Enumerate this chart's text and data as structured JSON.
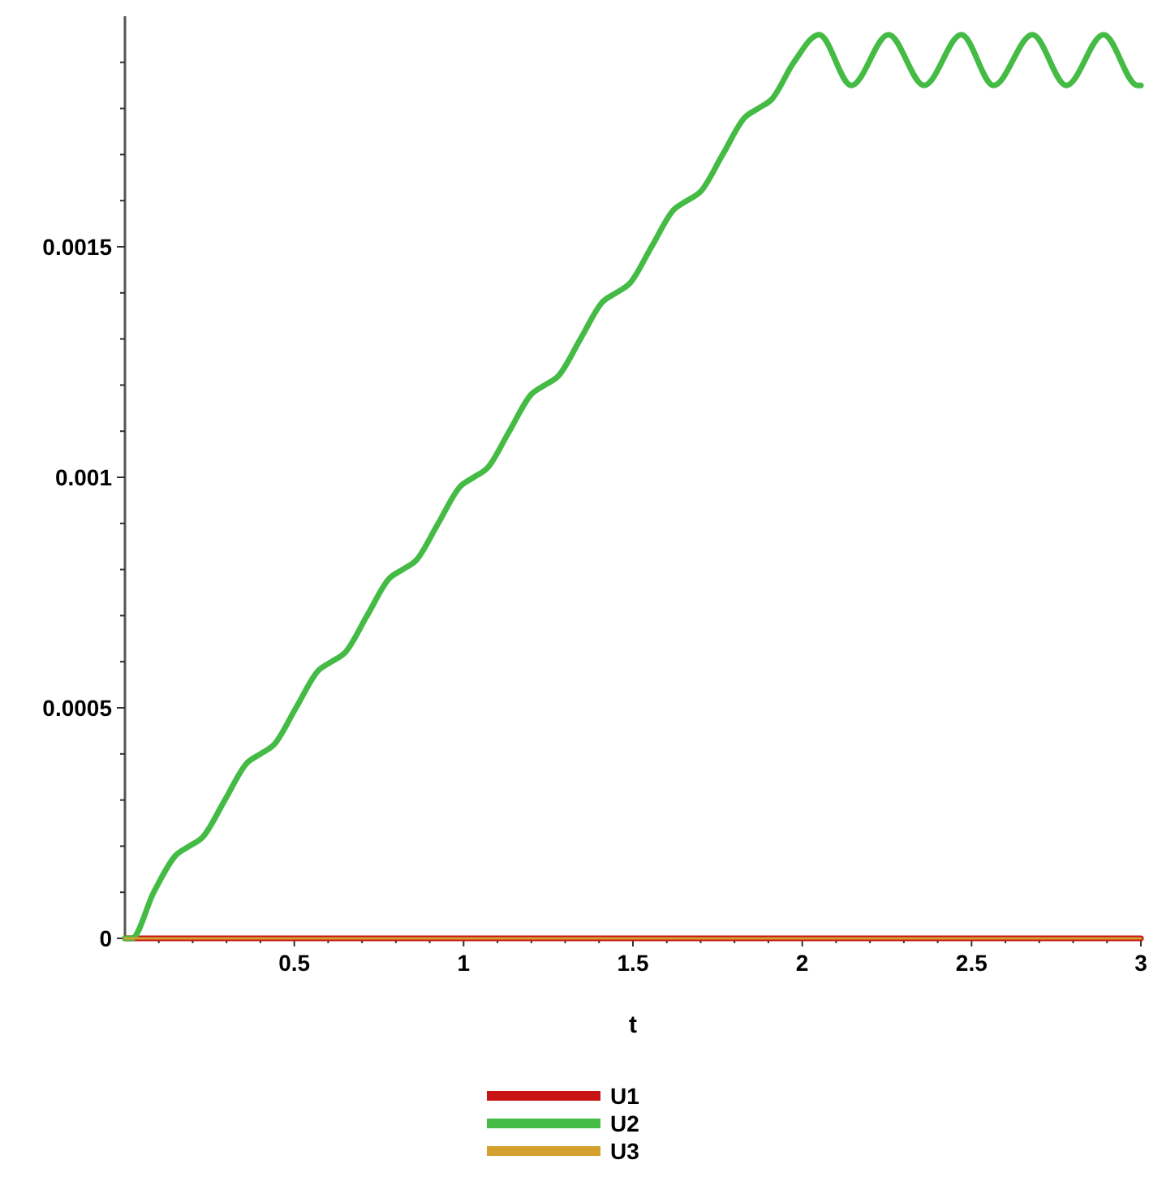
{
  "chart_data": {
    "type": "line",
    "xlabel": "t",
    "xlim": [
      0,
      3
    ],
    "ylim": [
      0,
      0.002
    ],
    "xticks": [
      {
        "value": 0.1,
        "label": null
      },
      {
        "value": 0.2,
        "label": null
      },
      {
        "value": 0.3,
        "label": null
      },
      {
        "value": 0.4,
        "label": null
      },
      0.5,
      {
        "value": 0.6,
        "label": null
      },
      {
        "value": 0.7,
        "label": null
      },
      {
        "value": 0.8,
        "label": null
      },
      {
        "value": 0.9,
        "label": null
      },
      1,
      {
        "value": 1.1,
        "label": null
      },
      {
        "value": 1.2,
        "label": null
      },
      {
        "value": 1.3,
        "label": null
      },
      {
        "value": 1.4,
        "label": null
      },
      1.5,
      {
        "value": 1.6,
        "label": null
      },
      {
        "value": 1.7,
        "label": null
      },
      {
        "value": 1.8,
        "label": null
      },
      {
        "value": 1.9,
        "label": null
      },
      2,
      {
        "value": 2.1,
        "label": null
      },
      {
        "value": 2.2,
        "label": null
      },
      {
        "value": 2.3,
        "label": null
      },
      {
        "value": 2.4,
        "label": null
      },
      2.5,
      {
        "value": 2.6,
        "label": null
      },
      {
        "value": 2.7,
        "label": null
      },
      {
        "value": 2.8,
        "label": null
      },
      {
        "value": 2.9,
        "label": null
      },
      3
    ],
    "yticks": [
      0,
      {
        "value": 0.0001,
        "label": null
      },
      {
        "value": 0.0002,
        "label": null
      },
      {
        "value": 0.0003,
        "label": null
      },
      {
        "value": 0.0004,
        "label": null
      },
      0.0005,
      {
        "value": 0.0006,
        "label": null
      },
      {
        "value": 0.0007,
        "label": null
      },
      {
        "value": 0.0008,
        "label": null
      },
      {
        "value": 0.0009,
        "label": null
      },
      0.001,
      {
        "value": 0.0011,
        "label": null
      },
      {
        "value": 0.0012,
        "label": null
      },
      {
        "value": 0.0013,
        "label": null
      },
      {
        "value": 0.0014,
        "label": null
      },
      0.0015,
      {
        "value": 0.0016,
        "label": null
      },
      {
        "value": 0.0017,
        "label": null
      },
      {
        "value": 0.0018,
        "label": null
      },
      {
        "value": 0.0019,
        "label": null
      }
    ],
    "grid": false,
    "legend": "bottom",
    "marker": "none",
    "line_style": "solid",
    "series": [
      {
        "name": "U1",
        "color": "#c81414",
        "x": [
          0,
          3
        ],
        "values": [
          0,
          0
        ]
      },
      {
        "name": "U2",
        "color": "#44bb44",
        "x": [
          0,
          0.02,
          0.085,
          0.15,
          0.19,
          0.23,
          0.295,
          0.36,
          0.4,
          0.44,
          0.505,
          0.57,
          0.61,
          0.65,
          0.715,
          0.78,
          0.82,
          0.86,
          0.925,
          0.99,
          1.03,
          1.07,
          1.135,
          1.2,
          1.24,
          1.28,
          1.345,
          1.41,
          1.45,
          1.49,
          1.555,
          1.62,
          1.66,
          1.7,
          1.765,
          1.83,
          1.87,
          1.91,
          1.975,
          2.05,
          2.145,
          2.255,
          2.36,
          2.47,
          2.565,
          2.68,
          2.78,
          2.89,
          2.99,
          3
        ],
        "values": [
          0,
          0,
          0.0001,
          0.00018,
          0.0002,
          0.00022,
          0.0003,
          0.00038,
          0.0004,
          0.00042,
          0.0005,
          0.00058,
          0.0006,
          0.00062,
          0.0007,
          0.00078,
          0.0008,
          0.00082,
          0.0009,
          0.00098,
          0.001,
          0.00102,
          0.0011,
          0.00118,
          0.0012,
          0.00122,
          0.0013,
          0.00138,
          0.0014,
          0.00142,
          0.0015,
          0.00158,
          0.0016,
          0.00162,
          0.0017,
          0.00178,
          0.0018,
          0.00182,
          0.0019,
          0.00196,
          0.00185,
          0.00196,
          0.00185,
          0.00196,
          0.00185,
          0.00196,
          0.00185,
          0.00196,
          0.00185,
          0.00185
        ]
      },
      {
        "name": "U3",
        "color": "#d4a030",
        "x": [
          0,
          3
        ],
        "values": [
          0,
          0
        ]
      }
    ]
  }
}
